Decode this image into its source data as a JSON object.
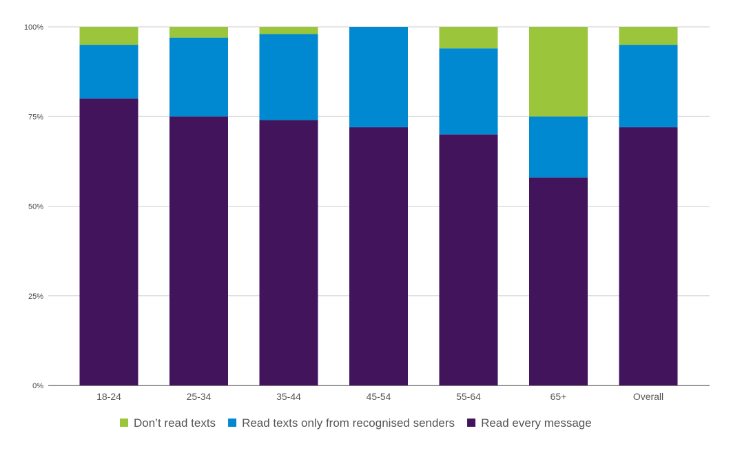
{
  "chart_data": {
    "type": "bar",
    "stacked": true,
    "categories": [
      "18-24",
      "25-34",
      "35-44",
      "45-54",
      "55-64",
      "65+",
      "Overall"
    ],
    "series": [
      {
        "name": "Read every message",
        "color": "#42145c",
        "values": [
          80,
          75,
          74,
          72,
          70,
          58,
          72
        ]
      },
      {
        "name": "Read texts only from recognised senders",
        "color": "#0088d1",
        "values": [
          15,
          22,
          24,
          28,
          24,
          17,
          23
        ]
      },
      {
        "name": "Don’t read texts",
        "color": "#9bc63b",
        "values": [
          5,
          3,
          2,
          0,
          6,
          25,
          5
        ]
      }
    ],
    "yticks": [
      "0%",
      "25%",
      "50%",
      "75%",
      "100%"
    ],
    "ylim": [
      0,
      100
    ],
    "grid": true,
    "legend_position": "bottom",
    "legend_order": [
      "Don’t read texts",
      "Read texts only from recognised senders",
      "Read every message"
    ]
  }
}
